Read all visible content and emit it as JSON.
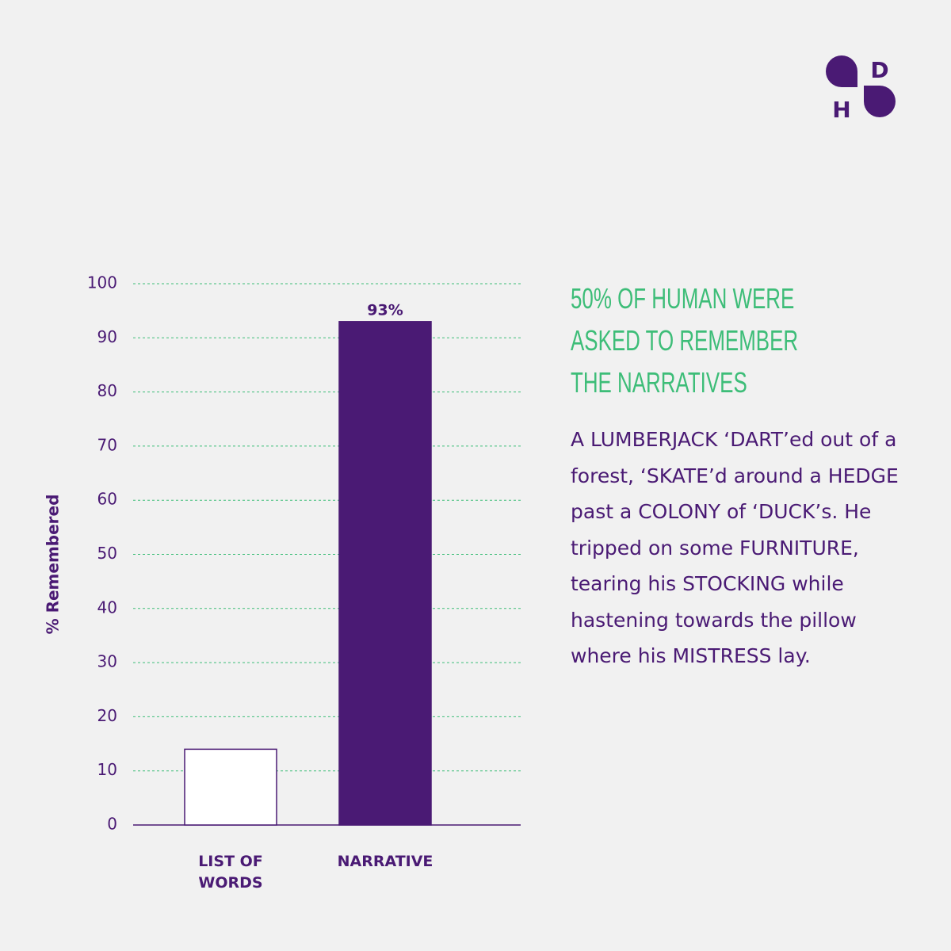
{
  "chart_data": {
    "type": "bar",
    "y_label": "% Remembered",
    "categories": [
      "LIST OF WORDS",
      "NARRATIVE"
    ],
    "values": [
      14,
      93
    ],
    "value_labels": [
      null,
      "93%"
    ],
    "colors": [
      "#ffffff",
      "#4a1a74"
    ],
    "edge_color": "#4a1a74",
    "grid_color": "#3dbd78",
    "ylim": [
      0,
      100
    ],
    "yticks": [
      0,
      10,
      20,
      30,
      40,
      50,
      60,
      70,
      80,
      90,
      100
    ],
    "grid": true
  },
  "side_text": {
    "heading": [
      "50% OF HUMAN WERE",
      "ASKED TO REMEMBER",
      "THE NARRATIVES"
    ],
    "body": "A LUMBERJACK ‘DART’ed out of a forest, ‘SKATE’d around a HEDGE past a COLONY of ‘DUCK’s. He tripped on some FURNITURE, tearing his STOCKING while hastening towards the pillow where his MISTRESS lay."
  },
  "logo": {
    "letters": [
      "D",
      "H"
    ]
  }
}
